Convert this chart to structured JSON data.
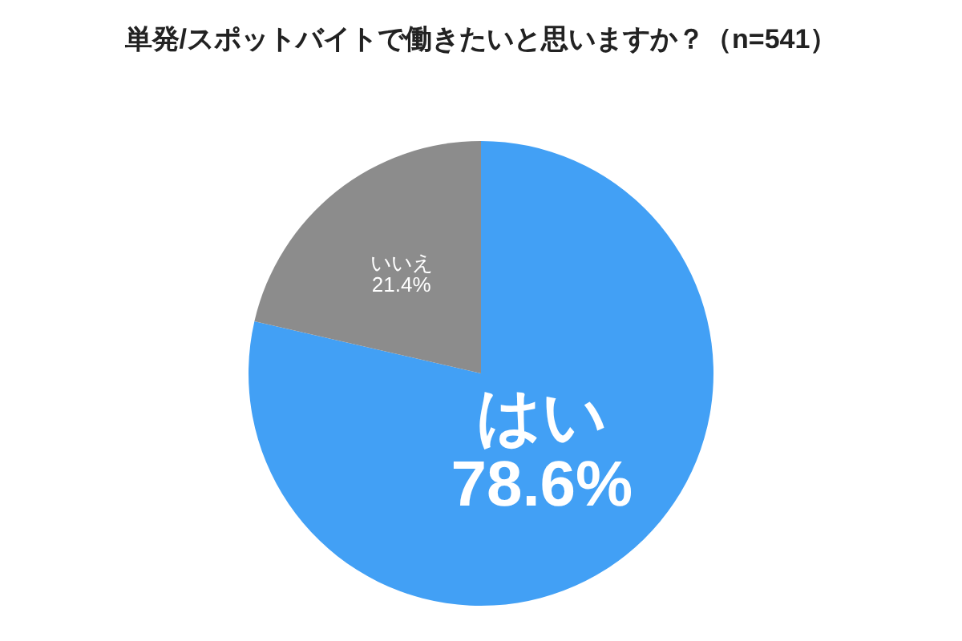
{
  "chart_data": {
    "type": "pie",
    "title": "単発/スポットバイトで働きたいと思いますか？（n=541）",
    "categories": [
      "はい",
      "いいえ"
    ],
    "values": [
      78.6,
      21.4
    ],
    "value_labels": [
      "78.6%",
      "21.4%"
    ],
    "colors": [
      "#42a0f5",
      "#8c8c8c"
    ]
  }
}
